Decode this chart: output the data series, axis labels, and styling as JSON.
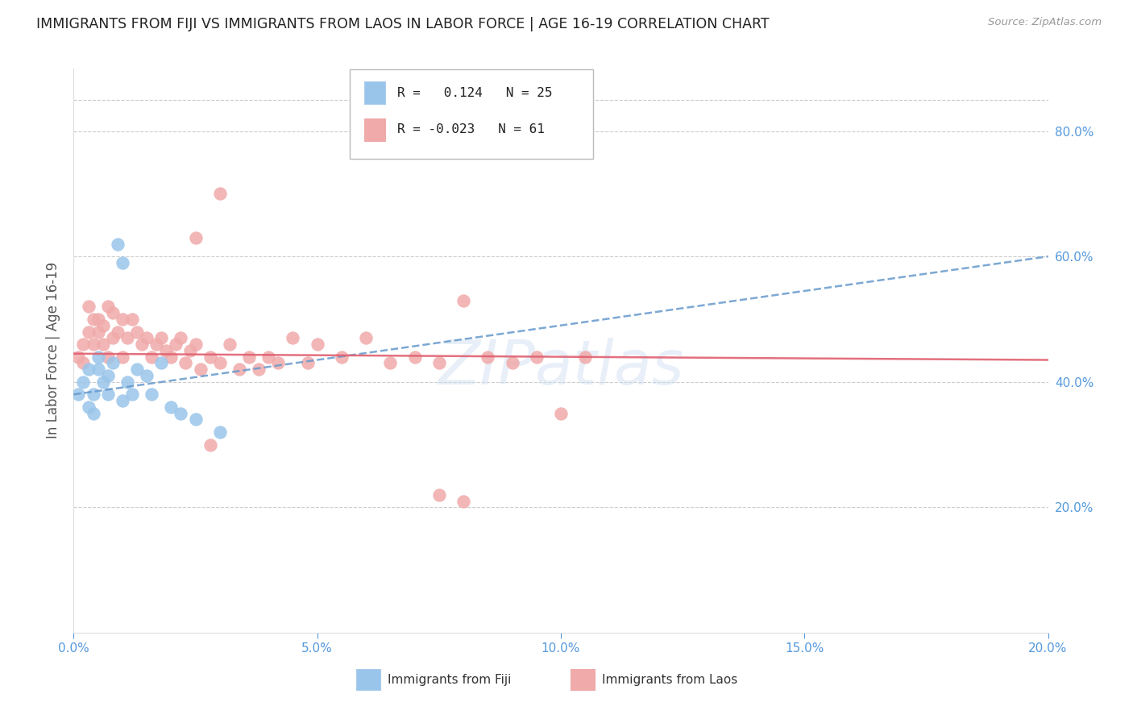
{
  "title": "IMMIGRANTS FROM FIJI VS IMMIGRANTS FROM LAOS IN LABOR FORCE | AGE 16-19 CORRELATION CHART",
  "source": "Source: ZipAtlas.com",
  "ylabel": "In Labor Force | Age 16-19",
  "xlim": [
    0.0,
    0.2
  ],
  "ylim": [
    0.0,
    0.9
  ],
  "xtick_vals": [
    0.0,
    0.05,
    0.1,
    0.15,
    0.2
  ],
  "xtick_labels": [
    "0.0%",
    "5.0%",
    "10.0%",
    "15.0%",
    "20.0%"
  ],
  "ytick_vals": [
    0.2,
    0.4,
    0.6,
    0.8
  ],
  "ytick_labels_right": [
    "20.0%",
    "40.0%",
    "60.0%",
    "80.0%"
  ],
  "grid_color": "#cccccc",
  "bg_color": "#ffffff",
  "fiji_dot_color": "#99C5EA",
  "fiji_line_color": "#6699CC",
  "laos_dot_color": "#F0AAAA",
  "laos_line_color": "#E06070",
  "axis_text_color": "#5599DD",
  "title_color": "#222222",
  "label_color": "#555555",
  "watermark": "ZIPatlas",
  "fiji_scatter_x": [
    0.001,
    0.002,
    0.003,
    0.003,
    0.004,
    0.004,
    0.005,
    0.005,
    0.006,
    0.007,
    0.007,
    0.008,
    0.009,
    0.01,
    0.01,
    0.011,
    0.012,
    0.013,
    0.015,
    0.016,
    0.018,
    0.02,
    0.022,
    0.025,
    0.03
  ],
  "fiji_scatter_y": [
    0.38,
    0.4,
    0.36,
    0.42,
    0.35,
    0.38,
    0.42,
    0.44,
    0.4,
    0.38,
    0.41,
    0.43,
    0.62,
    0.59,
    0.37,
    0.4,
    0.38,
    0.42,
    0.41,
    0.38,
    0.43,
    0.36,
    0.35,
    0.34,
    0.32
  ],
  "laos_scatter_x": [
    0.001,
    0.002,
    0.002,
    0.003,
    0.003,
    0.004,
    0.004,
    0.005,
    0.005,
    0.006,
    0.006,
    0.007,
    0.007,
    0.008,
    0.008,
    0.009,
    0.01,
    0.01,
    0.011,
    0.012,
    0.013,
    0.014,
    0.015,
    0.016,
    0.017,
    0.018,
    0.019,
    0.02,
    0.021,
    0.022,
    0.023,
    0.024,
    0.025,
    0.026,
    0.028,
    0.03,
    0.032,
    0.034,
    0.036,
    0.038,
    0.04,
    0.042,
    0.045,
    0.048,
    0.05,
    0.055,
    0.06,
    0.065,
    0.07,
    0.075,
    0.08,
    0.085,
    0.09,
    0.095,
    0.1,
    0.105,
    0.075,
    0.08,
    0.025,
    0.03,
    0.028
  ],
  "laos_scatter_y": [
    0.44,
    0.46,
    0.43,
    0.52,
    0.48,
    0.5,
    0.46,
    0.5,
    0.48,
    0.49,
    0.46,
    0.52,
    0.44,
    0.47,
    0.51,
    0.48,
    0.44,
    0.5,
    0.47,
    0.5,
    0.48,
    0.46,
    0.47,
    0.44,
    0.46,
    0.47,
    0.45,
    0.44,
    0.46,
    0.47,
    0.43,
    0.45,
    0.46,
    0.42,
    0.44,
    0.43,
    0.46,
    0.42,
    0.44,
    0.42,
    0.44,
    0.43,
    0.47,
    0.43,
    0.46,
    0.44,
    0.47,
    0.43,
    0.44,
    0.43,
    0.53,
    0.44,
    0.43,
    0.44,
    0.35,
    0.44,
    0.22,
    0.21,
    0.63,
    0.7,
    0.3
  ],
  "fiji_line_x0": 0.0,
  "fiji_line_y0": 0.38,
  "fiji_line_x1": 0.2,
  "fiji_line_y1": 0.6,
  "laos_line_x0": 0.0,
  "laos_line_y0": 0.445,
  "laos_line_x1": 0.2,
  "laos_line_y1": 0.435,
  "legend_fiji_label": "R =   0.124   N = 25",
  "legend_laos_label": "R = -0.023   N = 61"
}
